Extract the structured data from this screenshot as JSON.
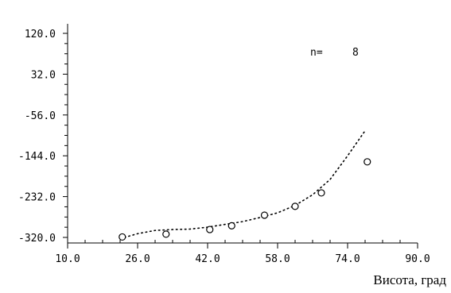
{
  "chart_data": {
    "type": "scatter",
    "title": "",
    "xlabel": "Висота, град",
    "ylabel": "",
    "xlim": [
      10.0,
      90.0
    ],
    "ylim": [
      -320.0,
      120.0
    ],
    "x_ticks": [
      "10.0",
      "26.0",
      "42.0",
      "58.0",
      "74.0",
      "90.0"
    ],
    "y_ticks": [
      "120.0",
      "32.0",
      "-56.0",
      "-144.0",
      "-232.0",
      "-320.0"
    ],
    "x_tick_values": [
      10,
      26,
      42,
      58,
      74,
      90
    ],
    "y_tick_values": [
      120,
      32,
      -56,
      -144,
      -232,
      -320
    ],
    "n_label": "n=",
    "n_value": "8",
    "points": {
      "x": [
        22.5,
        32.5,
        42.5,
        47.5,
        55.0,
        62.0,
        68.0,
        78.5
      ],
      "y": [
        -319,
        -313,
        -303,
        -295,
        -272,
        -253,
        -224,
        -157
      ]
    },
    "fit_curve": {
      "x": [
        23,
        26,
        30,
        34,
        38,
        42,
        46,
        50,
        54,
        58,
        62,
        66,
        70,
        74,
        78
      ],
      "y": [
        -320,
        -312,
        -305,
        -303,
        -302,
        -298,
        -292,
        -286,
        -277,
        -267,
        -251,
        -228,
        -195,
        -144,
        -90
      ]
    },
    "grid": false,
    "legend": "none",
    "colors": {
      "axis": "#000000",
      "marker": "#000000",
      "fit": "#000000"
    }
  }
}
